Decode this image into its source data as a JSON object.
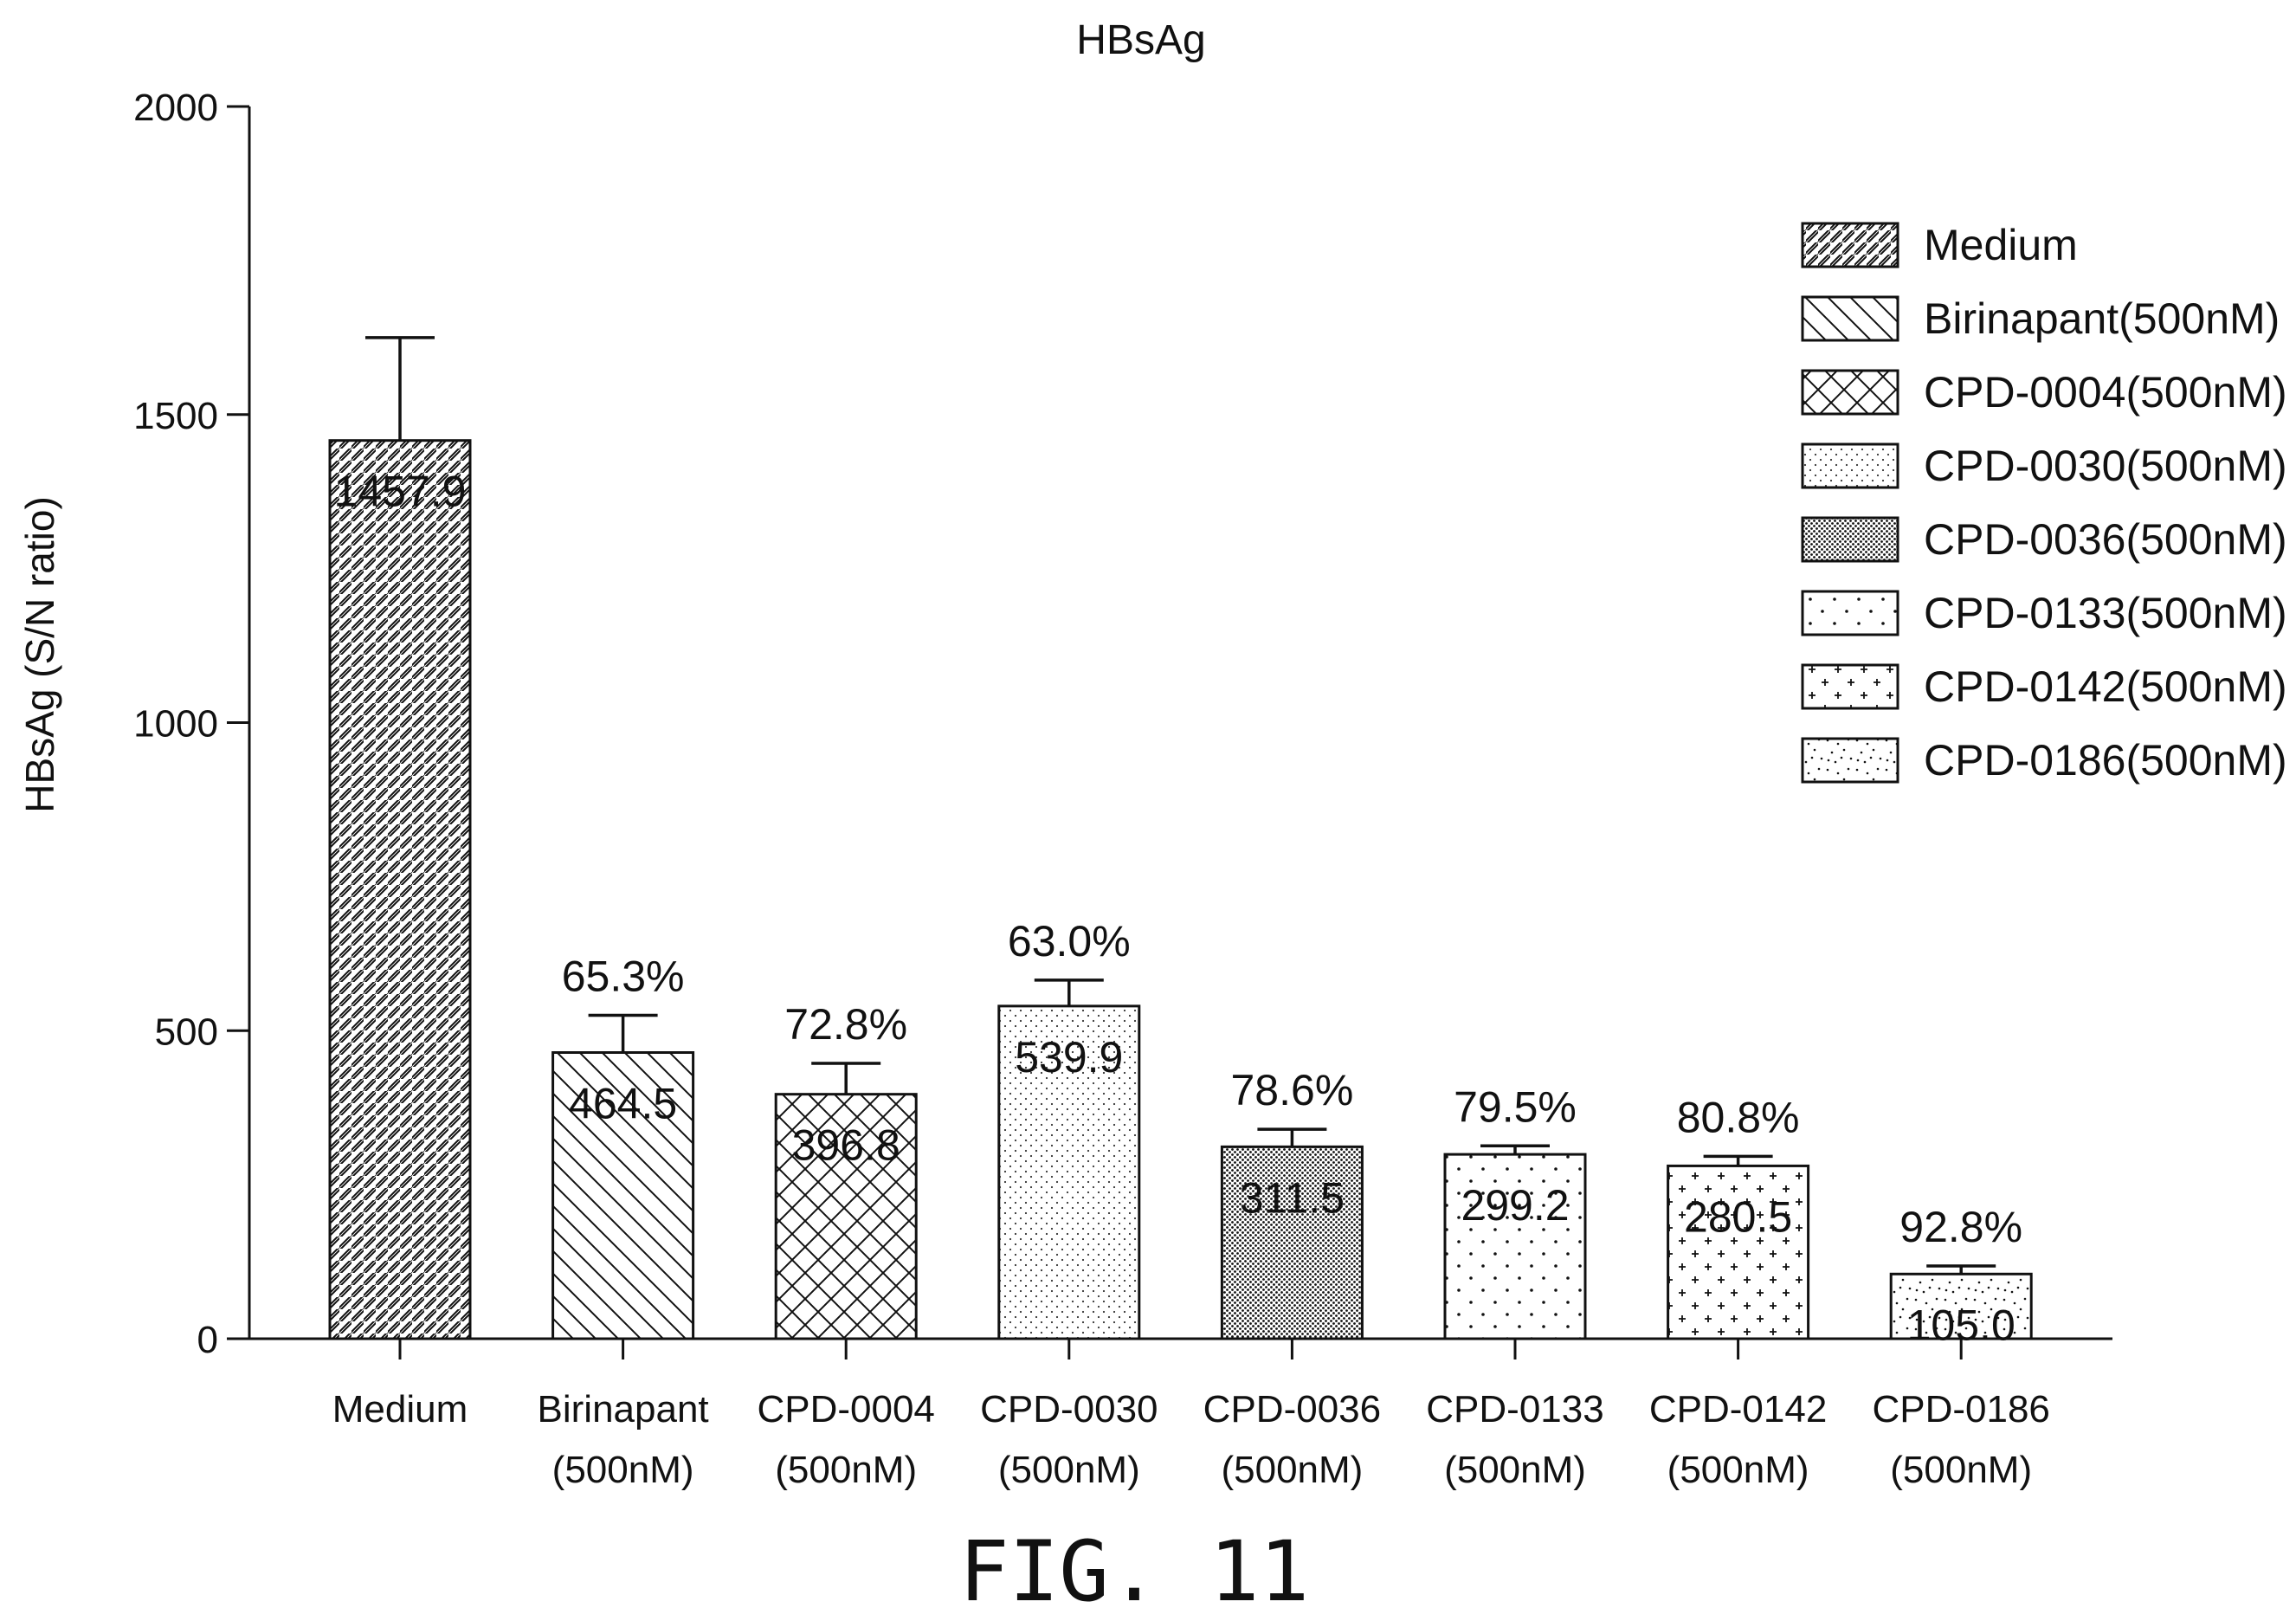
{
  "chart_data": {
    "type": "bar",
    "title": "HBsAg",
    "ylabel": "HBsAg (S/N ratio)",
    "xlabel": "",
    "ylim": [
      0,
      2000
    ],
    "yticks": [
      "0",
      "500",
      "1000",
      "1500",
      "2000"
    ],
    "ytick_values": [
      0,
      500,
      1000,
      1500,
      2000
    ],
    "grid": false,
    "legend_position": "top-right",
    "categories": [
      [
        "Medium",
        ""
      ],
      [
        "Birinapant",
        "(500nM)"
      ],
      [
        "CPD-0004",
        "(500nM)"
      ],
      [
        "CPD-0030",
        "(500nM)"
      ],
      [
        "CPD-0036",
        "(500nM)"
      ],
      [
        "CPD-0133",
        "(500nM)"
      ],
      [
        "CPD-0142",
        "(500nM)"
      ],
      [
        "CPD-0186",
        "(500nM)"
      ]
    ],
    "values": [
      1457.9,
      464.5,
      396.8,
      539.9,
      311.5,
      299.2,
      280.5,
      105.0
    ],
    "value_labels": [
      "1457.9",
      "464.5",
      "396.8",
      "539.9",
      "311.5",
      "299.2",
      "280.5",
      "105.0"
    ],
    "error_upper": [
      1625,
      525,
      447,
      582,
      340,
      313,
      296,
      118
    ],
    "percent_labels": [
      "",
      "65.3%",
      "72.8%",
      "63.0%",
      "78.6%",
      "79.5%",
      "80.8%",
      "92.8%"
    ],
    "patterns": [
      "diag-right",
      "diag-left",
      "crosshatch",
      "fine-dots",
      "dense-dots",
      "sparse-dots",
      "plus",
      "speckle"
    ],
    "legend": [
      "Medium",
      "Birinapant(500nM)",
      "CPD-0004(500nM)",
      "CPD-0030(500nM)",
      "CPD-0036(500nM)",
      "CPD-0133(500nM)",
      "CPD-0142(500nM)",
      "CPD-0186(500nM)"
    ]
  },
  "figure_label": "FIG. 11"
}
